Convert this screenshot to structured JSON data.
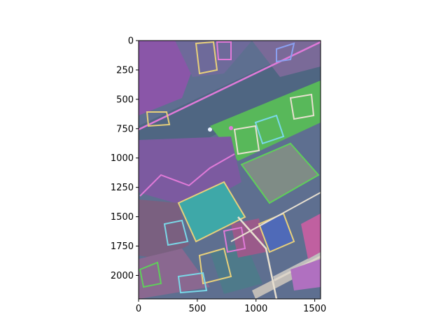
{
  "image_figure": {
    "description": "aerial segmentation overlay",
    "x_axis": {
      "ticks": [
        0,
        500,
        1000,
        1500
      ],
      "range": [
        0,
        1550
      ]
    },
    "y_axis": {
      "ticks": [
        0,
        250,
        500,
        750,
        1000,
        1250,
        1500,
        1750,
        2000
      ],
      "range": [
        0,
        2200
      ],
      "inverted": true
    },
    "colors": {
      "background": "#5e6f90",
      "road": "#4f6682",
      "vegetation": "#7c5aa0",
      "lawn": "#5fcf5a",
      "roof_teal": "#3ea8a8",
      "roof_gray": "#7f8c86",
      "roof_blue": "#4f6ab8",
      "outline_pink": "#e07ad8",
      "outline_yellow": "#e8d07a",
      "outline_cyan": "#7ad8e8"
    }
  }
}
